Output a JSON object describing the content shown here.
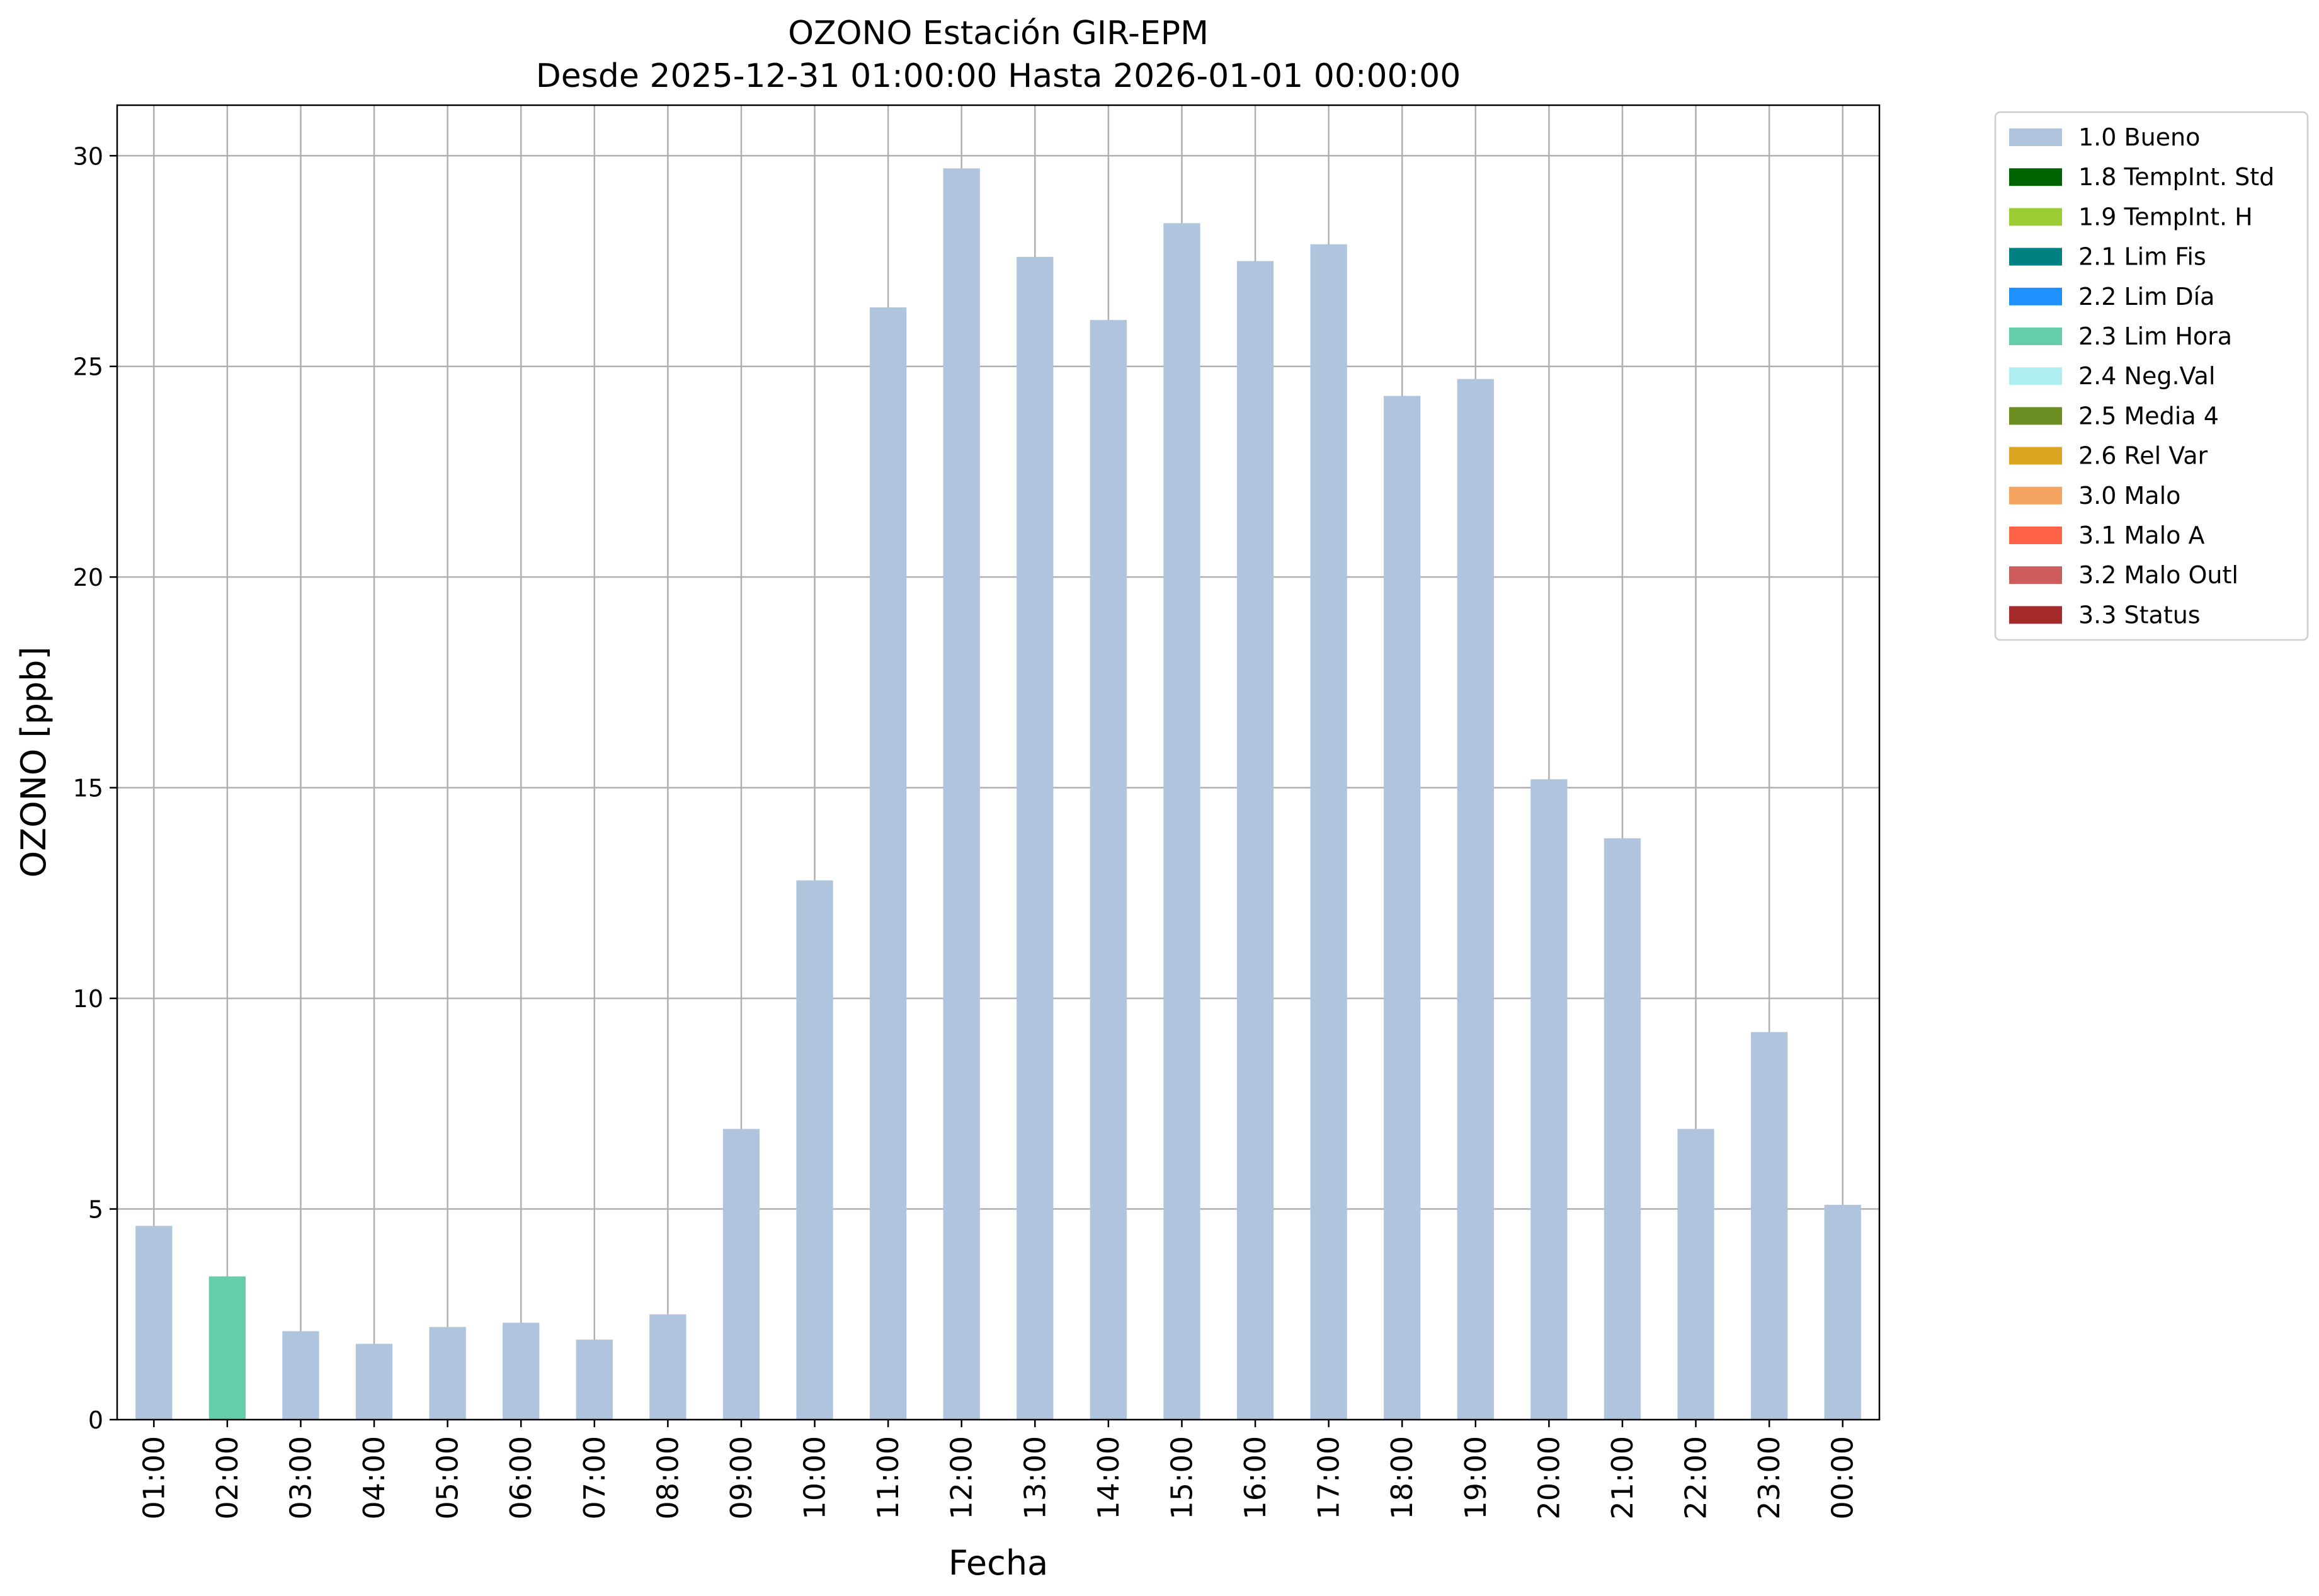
{
  "chart_data": {
    "type": "bar",
    "title": "OZONO Estación GIR-EPM",
    "subtitle": "Desde 2025-12-31 01:00:00 Hasta 2026-01-01 00:00:00",
    "xlabel": "Fecha",
    "ylabel": "OZONO [ppb]",
    "ylim": [
      0,
      31.2
    ],
    "yticks": [
      "0",
      "5",
      "10",
      "15",
      "20",
      "25",
      "30"
    ],
    "grid": true,
    "legend_position": "outside-top-right",
    "categories": [
      "01:00",
      "02:00",
      "03:00",
      "04:00",
      "05:00",
      "06:00",
      "07:00",
      "08:00",
      "09:00",
      "10:00",
      "11:00",
      "12:00",
      "13:00",
      "14:00",
      "15:00",
      "16:00",
      "17:00",
      "18:00",
      "19:00",
      "20:00",
      "21:00",
      "22:00",
      "23:00",
      "00:00"
    ],
    "values": [
      4.6,
      3.4,
      2.1,
      1.8,
      2.2,
      2.3,
      1.9,
      2.5,
      6.9,
      12.8,
      26.4,
      29.7,
      27.6,
      26.1,
      28.4,
      27.5,
      27.9,
      24.3,
      24.7,
      15.2,
      13.8,
      6.9,
      9.2,
      5.1
    ],
    "bar_flags": [
      "1.0",
      "2.3",
      "1.0",
      "1.0",
      "1.0",
      "1.0",
      "1.0",
      "1.0",
      "1.0",
      "1.0",
      "1.0",
      "1.0",
      "1.0",
      "1.0",
      "1.0",
      "1.0",
      "1.0",
      "1.0",
      "1.0",
      "1.0",
      "1.0",
      "1.0",
      "1.0",
      "1.0"
    ],
    "legend": [
      {
        "code": "1.0",
        "label": "1.0 Bueno",
        "color": "#b0c4de"
      },
      {
        "code": "1.8",
        "label": "1.8 TempInt. Std",
        "color": "#006400"
      },
      {
        "code": "1.9",
        "label": "1.9 TempInt. H",
        "color": "#9acd32"
      },
      {
        "code": "2.1",
        "label": "2.1 Lim Fis",
        "color": "#008080"
      },
      {
        "code": "2.2",
        "label": "2.2 Lim Día",
        "color": "#1e90ff"
      },
      {
        "code": "2.3",
        "label": "2.3 Lim Hora",
        "color": "#66cdaa"
      },
      {
        "code": "2.4",
        "label": "2.4 Neg.Val",
        "color": "#afeeee"
      },
      {
        "code": "2.5",
        "label": "2.5 Media 4",
        "color": "#6b8e23"
      },
      {
        "code": "2.6",
        "label": "2.6 Rel Var",
        "color": "#daa520"
      },
      {
        "code": "3.0",
        "label": "3.0 Malo",
        "color": "#f4a460"
      },
      {
        "code": "3.1",
        "label": "3.1 Malo A",
        "color": "#ff6347"
      },
      {
        "code": "3.2",
        "label": "3.2 Malo Outl",
        "color": "#cd5c5c"
      },
      {
        "code": "3.3",
        "label": "3.3 Status",
        "color": "#a52a2a"
      }
    ]
  }
}
